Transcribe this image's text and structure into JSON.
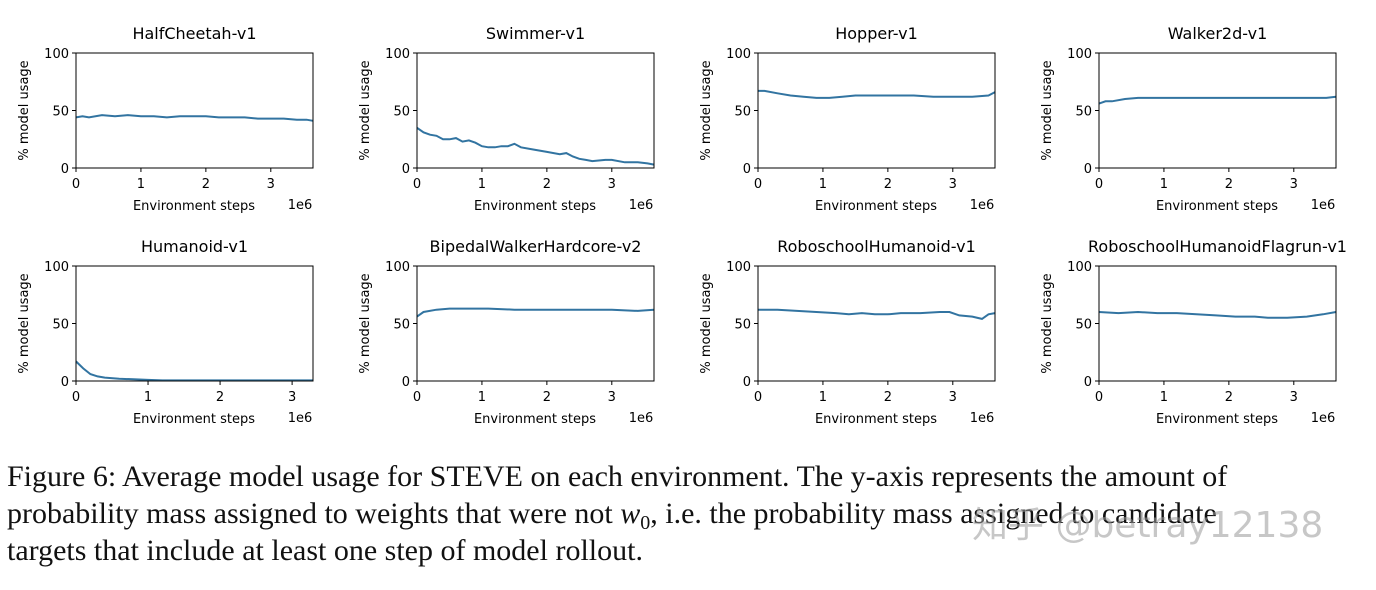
{
  "chart_data": [
    {
      "type": "line",
      "title": "HalfCheetah-v1",
      "xlabel": "Environment steps",
      "ylabel": "% model usage",
      "x_offset_label": "1e6",
      "x": [
        0,
        0.1,
        0.2,
        0.4,
        0.6,
        0.8,
        1.0,
        1.2,
        1.4,
        1.6,
        1.8,
        2.0,
        2.2,
        2.4,
        2.6,
        2.8,
        3.0,
        3.2,
        3.4,
        3.55,
        3.65
      ],
      "values": [
        44,
        45,
        44,
        46,
        45,
        46,
        45,
        45,
        44,
        45,
        45,
        45,
        44,
        44,
        44,
        43,
        43,
        43,
        42,
        42,
        41
      ],
      "color": "#3274a1",
      "xlim": [
        0,
        3.65
      ],
      "ylim": [
        0,
        100
      ],
      "xticks": [
        0,
        1,
        2,
        3
      ],
      "yticks": [
        0,
        50,
        100
      ]
    },
    {
      "type": "line",
      "title": "Swimmer-v1",
      "xlabel": "Environment steps",
      "ylabel": "% model usage",
      "x_offset_label": "1e6",
      "x": [
        0,
        0.1,
        0.2,
        0.3,
        0.4,
        0.5,
        0.6,
        0.7,
        0.8,
        0.9,
        1.0,
        1.1,
        1.2,
        1.3,
        1.4,
        1.5,
        1.6,
        1.8,
        2.0,
        2.2,
        2.3,
        2.4,
        2.5,
        2.6,
        2.7,
        2.9,
        3.0,
        3.2,
        3.4,
        3.55,
        3.65
      ],
      "values": [
        35,
        31,
        29,
        28,
        25,
        25,
        26,
        23,
        24,
        22,
        19,
        18,
        18,
        19,
        19,
        21,
        18,
        16,
        14,
        12,
        13,
        10,
        8,
        7,
        6,
        7,
        7,
        5,
        5,
        4,
        3
      ],
      "color": "#3274a1",
      "xlim": [
        0,
        3.65
      ],
      "ylim": [
        0,
        100
      ],
      "xticks": [
        0,
        1,
        2,
        3
      ],
      "yticks": [
        0,
        50,
        100
      ]
    },
    {
      "type": "line",
      "title": "Hopper-v1",
      "xlabel": "Environment steps",
      "ylabel": "% model usage",
      "x_offset_label": "1e6",
      "x": [
        0,
        0.1,
        0.3,
        0.5,
        0.7,
        0.9,
        1.1,
        1.3,
        1.5,
        1.8,
        2.1,
        2.4,
        2.7,
        3.0,
        3.3,
        3.55,
        3.65
      ],
      "values": [
        67,
        67,
        65,
        63,
        62,
        61,
        61,
        62,
        63,
        63,
        63,
        63,
        62,
        62,
        62,
        63,
        66
      ],
      "color": "#3274a1",
      "xlim": [
        0,
        3.65
      ],
      "ylim": [
        0,
        100
      ],
      "xticks": [
        0,
        1,
        2,
        3
      ],
      "yticks": [
        0,
        50,
        100
      ]
    },
    {
      "type": "line",
      "title": "Walker2d-v1",
      "xlabel": "Environment steps",
      "ylabel": "% model usage",
      "x_offset_label": "1e6",
      "x": [
        0,
        0.1,
        0.2,
        0.4,
        0.6,
        0.8,
        1.0,
        1.3,
        1.6,
        2.0,
        2.4,
        2.8,
        3.2,
        3.5,
        3.65
      ],
      "values": [
        56,
        58,
        58,
        60,
        61,
        61,
        61,
        61,
        61,
        61,
        61,
        61,
        61,
        61,
        62
      ],
      "color": "#3274a1",
      "xlim": [
        0,
        3.65
      ],
      "ylim": [
        0,
        100
      ],
      "xticks": [
        0,
        1,
        2,
        3
      ],
      "yticks": [
        0,
        50,
        100
      ]
    },
    {
      "type": "line",
      "title": "Humanoid-v1",
      "xlabel": "Environment steps",
      "ylabel": "% model usage",
      "x_offset_label": "1e6",
      "x": [
        0,
        0.1,
        0.2,
        0.3,
        0.4,
        0.6,
        0.8,
        1.0,
        1.2,
        1.5,
        2.0,
        2.5,
        3.0,
        3.29
      ],
      "values": [
        17,
        11,
        6,
        4,
        3,
        2,
        1.5,
        1,
        0.5,
        0.5,
        0.5,
        0.5,
        0.5,
        0.5
      ],
      "color": "#3274a1",
      "xlim": [
        0,
        3.29
      ],
      "ylim": [
        0,
        100
      ],
      "xticks": [
        0,
        1,
        2,
        3
      ],
      "yticks": [
        0,
        50,
        100
      ]
    },
    {
      "type": "line",
      "title": "BipedalWalkerHardcore-v2",
      "xlabel": "Environment steps",
      "ylabel": "% model usage",
      "x_offset_label": "1e6",
      "x": [
        0,
        0.1,
        0.3,
        0.5,
        0.8,
        1.1,
        1.5,
        2.0,
        2.5,
        3.0,
        3.4,
        3.65
      ],
      "values": [
        56,
        60,
        62,
        63,
        63,
        63,
        62,
        62,
        62,
        62,
        61,
        62
      ],
      "color": "#3274a1",
      "xlim": [
        0,
        3.65
      ],
      "ylim": [
        0,
        100
      ],
      "xticks": [
        0,
        1,
        2,
        3
      ],
      "yticks": [
        0,
        50,
        100
      ]
    },
    {
      "type": "line",
      "title": "RoboschoolHumanoid-v1",
      "xlabel": "Environment steps",
      "ylabel": "% model usage",
      "x_offset_label": "1e6",
      "x": [
        0,
        0.3,
        0.6,
        0.9,
        1.2,
        1.4,
        1.6,
        1.8,
        2.0,
        2.2,
        2.5,
        2.8,
        2.95,
        3.1,
        3.3,
        3.45,
        3.55,
        3.65
      ],
      "values": [
        62,
        62,
        61,
        60,
        59,
        58,
        59,
        58,
        58,
        59,
        59,
        60,
        60,
        57,
        56,
        54,
        58,
        59
      ],
      "color": "#3274a1",
      "xlim": [
        0,
        3.65
      ],
      "ylim": [
        0,
        100
      ],
      "xticks": [
        0,
        1,
        2,
        3
      ],
      "yticks": [
        0,
        50,
        100
      ]
    },
    {
      "type": "line",
      "title": "RoboschoolHumanoidFlagrun-v1",
      "xlabel": "Environment steps",
      "ylabel": "% model usage",
      "x_offset_label": "1e6",
      "x": [
        0,
        0.3,
        0.6,
        0.9,
        1.2,
        1.5,
        1.8,
        2.1,
        2.4,
        2.6,
        2.9,
        3.2,
        3.45,
        3.65
      ],
      "values": [
        60,
        59,
        60,
        59,
        59,
        58,
        57,
        56,
        56,
        55,
        55,
        56,
        58,
        60
      ],
      "color": "#3274a1",
      "xlim": [
        0,
        3.65
      ],
      "ylim": [
        0,
        100
      ],
      "xticks": [
        0,
        1,
        2,
        3
      ],
      "yticks": [
        0,
        50,
        100
      ]
    }
  ],
  "caption": {
    "line1": "Figure 6: Average model usage for STEVE on each environment. The y-axis represents the amount of",
    "line2_before": "probability mass assigned to weights that were not ",
    "w": "w",
    "w_sub": "0",
    "line2_after": ", i.e. the probability mass assigned to candidate",
    "line3": "targets that include at least one step of model rollout."
  },
  "watermark": "知乎 @betray12138"
}
